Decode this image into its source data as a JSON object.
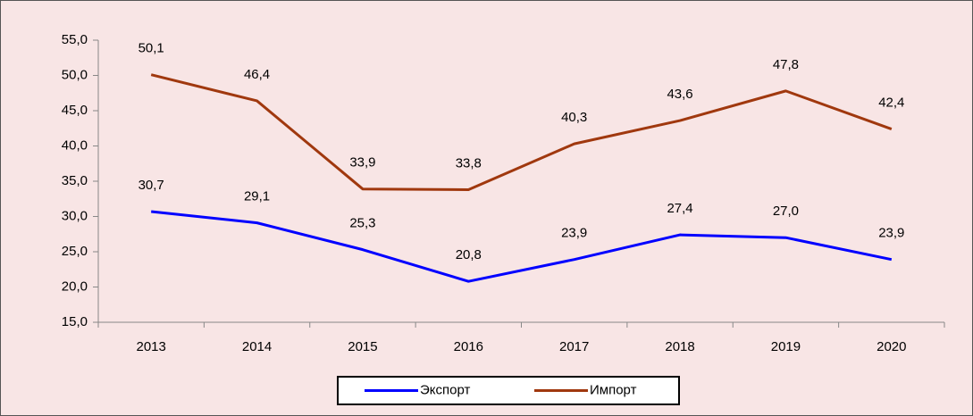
{
  "chart_data": {
    "type": "line",
    "categories": [
      "2013",
      "2014",
      "2015",
      "2016",
      "2017",
      "2018",
      "2019",
      "2020"
    ],
    "series": [
      {
        "name": "Экспорт",
        "color": "#0000ff",
        "values": [
          30.7,
          29.1,
          25.3,
          20.8,
          23.9,
          27.4,
          27.0,
          23.9
        ],
        "value_labels": [
          "30,7",
          "29,1",
          "25,3",
          "20,8",
          "23,9",
          "27,4",
          "27,0",
          "23,9"
        ]
      },
      {
        "name": "Импорт",
        "color": "#a0380e",
        "values": [
          50.1,
          46.4,
          33.9,
          33.8,
          40.3,
          43.6,
          47.8,
          42.4
        ],
        "value_labels": [
          "50,1",
          "46,4",
          "33,9",
          "33,8",
          "40,3",
          "43,6",
          "47,8",
          "42,4"
        ]
      }
    ],
    "ylim": [
      15,
      55
    ],
    "yticks": [
      {
        "value": 15,
        "label": "15,0"
      },
      {
        "value": 20,
        "label": "20,0"
      },
      {
        "value": 25,
        "label": "25,0"
      },
      {
        "value": 30,
        "label": "30,0"
      },
      {
        "value": 35,
        "label": "35,0"
      },
      {
        "value": 40,
        "label": "40,0"
      },
      {
        "value": 45,
        "label": "45,0"
      },
      {
        "value": 50,
        "label": "50,0"
      },
      {
        "value": 55,
        "label": "55,0"
      }
    ],
    "grid": false,
    "legend": "bottom"
  }
}
